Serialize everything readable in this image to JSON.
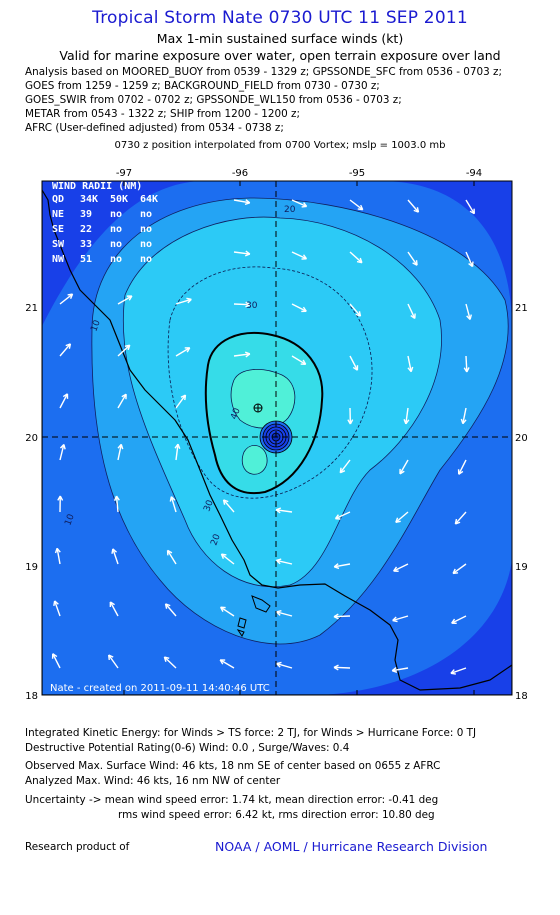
{
  "header": {
    "title": "Tropical Storm Nate 0730 UTC 11 SEP 2011",
    "subtitle1": "Max 1-min sustained surface winds (kt)",
    "subtitle2": "Valid for marine exposure over water, open terrain exposure over land"
  },
  "analysis_lines": [
    "Analysis based on MOORED_BUOY from 0539 - 1329 z; GPSSONDE_SFC from 0536 - 0703 z;",
    "GOES from 1259 - 1259 z; BACKGROUND_FIELD from 0730 - 0730 z;",
    "GOES_SWIR from 0702 - 0702 z; GPSSONDE_WL150 from 0536 - 0703 z;",
    "METAR from 0543 - 1322 z; SHIP from 1200 - 1200 z;",
    "AFRC (User-defined adjusted) from 0534 - 0738 z;"
  ],
  "interp_line": "0730 z position interpolated from 0700 Vortex; mslp = 1003.0 mb",
  "map": {
    "x_ticks": [
      "-97",
      "-96",
      "-95",
      "-94"
    ],
    "y_ticks": [
      "21",
      "20",
      "19",
      "18"
    ],
    "contour_labels": [
      "20",
      "30",
      "40",
      "10",
      "30",
      "20",
      "10"
    ],
    "wind_radii": {
      "title": "WIND RADII (NM)",
      "header": [
        "QD",
        "34K",
        "50K",
        "64K"
      ],
      "rows": [
        [
          "NE",
          "39",
          "no",
          "no"
        ],
        [
          "SE",
          "22",
          "no",
          "no"
        ],
        [
          "SW",
          "33",
          "no",
          "no"
        ],
        [
          "NW",
          "51",
          "no",
          "no"
        ]
      ]
    },
    "created_label": "Nate - created on 2011-09-11 14:40:46 UTC"
  },
  "footer": {
    "ike": "Integrated Kinetic Energy:  for Winds > TS force: 2 TJ,  for Winds > Hurricane Force: 0 TJ",
    "dpr": "Destructive Potential Rating(0-6)   Wind: 0.0 , Surge/Waves: 0.4",
    "observed": "Observed Max. Surface Wind: 46 kts, 18 nm SE of center based on 0655 z AFRC",
    "analyzed": "Analyzed Max. Wind: 46 kts, 16 nm NW of center",
    "uncert1": "Uncertainty -> mean wind speed error: 1.74 kt,   mean direction error:  -0.41 deg",
    "uncert2": "rms wind speed error: 6.42 kt,   rms direction error: 10.80 deg",
    "research": "Research product of",
    "org": "NOAA / AOML / Hurricane Research Division"
  },
  "colors": {
    "title": "#1a1ad0",
    "level_lt10": "#1840e8",
    "level_10_20": "#1c6ef0",
    "level_20_30": "#24a4f4",
    "level_30_40": "#2ccaf6",
    "level_gt40": "#50f0d8"
  }
}
